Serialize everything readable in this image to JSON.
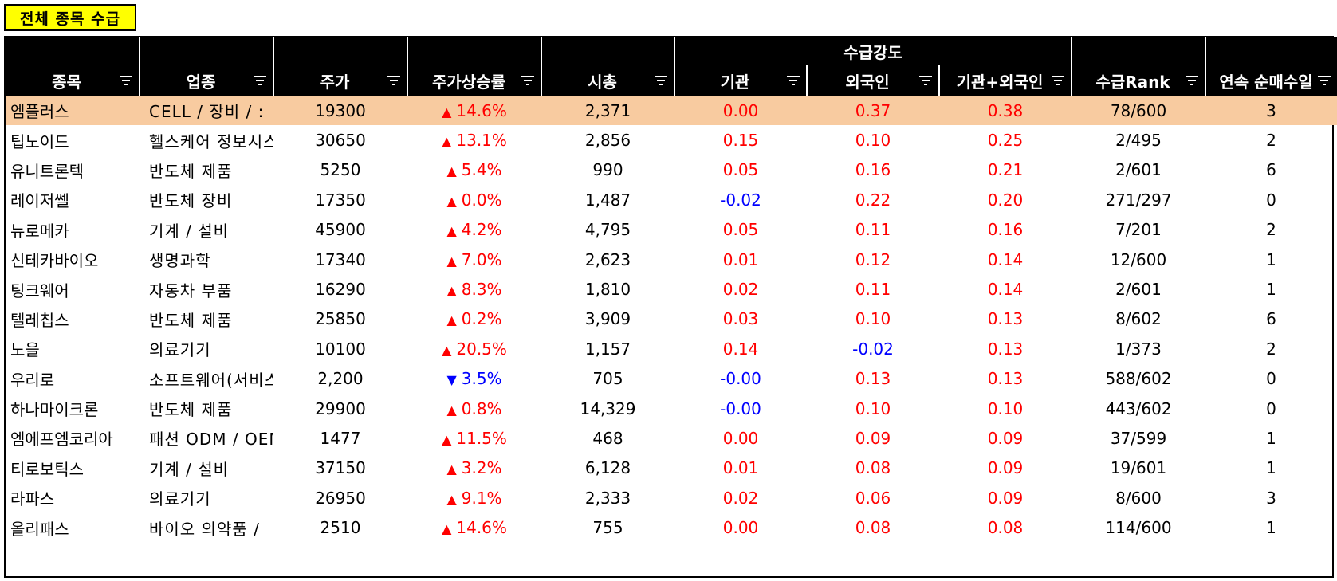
{
  "title": "전체 종목 수급",
  "group_header": "수급강도",
  "columns": [
    "종목",
    "업종",
    "주가",
    "주가상승률",
    "시총",
    "기관",
    "외국인",
    "기관+외국인",
    "수급Rank",
    "연속 순매수일"
  ],
  "icons": {
    "filter": "filter-icon",
    "up": "triangle-up-icon",
    "down": "triangle-down-icon"
  },
  "colors": {
    "highlight_row": "#f8cba0",
    "title_bg": "#ffff00",
    "positive": "#ff0000",
    "negative": "#0000ff"
  },
  "rows": [
    {
      "name": "엠플러스",
      "sector": "CELL / 장비 / :",
      "price": "19300",
      "dir": "up",
      "change": "14.6%",
      "mcap": "2,371",
      "inst": "0.00",
      "inst_dir": "up",
      "foreign": "0.37",
      "foreign_dir": "up",
      "combined": "0.38",
      "combined_dir": "up",
      "rank": "78/600",
      "days": "3",
      "highlight": true
    },
    {
      "name": "팁노이드",
      "sector": "헬스케어 정보시스",
      "price": "30650",
      "dir": "up",
      "change": "13.1%",
      "mcap": "2,856",
      "inst": "0.15",
      "inst_dir": "up",
      "foreign": "0.10",
      "foreign_dir": "up",
      "combined": "0.25",
      "combined_dir": "up",
      "rank": "2/495",
      "days": "2"
    },
    {
      "name": "유니트론텍",
      "sector": "반도체 제품",
      "price": "5250",
      "dir": "up",
      "change": "5.4%",
      "mcap": "990",
      "inst": "0.05",
      "inst_dir": "up",
      "foreign": "0.16",
      "foreign_dir": "up",
      "combined": "0.21",
      "combined_dir": "up",
      "rank": "2/601",
      "days": "6"
    },
    {
      "name": "레이저쎌",
      "sector": "반도체 장비",
      "price": "17350",
      "dir": "up",
      "change": "0.0%",
      "mcap": "1,487",
      "inst": "-0.02",
      "inst_dir": "down",
      "foreign": "0.22",
      "foreign_dir": "up",
      "combined": "0.20",
      "combined_dir": "up",
      "rank": "271/297",
      "days": "0"
    },
    {
      "name": "뉴로메카",
      "sector": "기계 / 설비",
      "price": "45900",
      "dir": "up",
      "change": "4.2%",
      "mcap": "4,795",
      "inst": "0.05",
      "inst_dir": "up",
      "foreign": "0.11",
      "foreign_dir": "up",
      "combined": "0.16",
      "combined_dir": "up",
      "rank": "7/201",
      "days": "2"
    },
    {
      "name": "신테카바이오",
      "sector": "생명과학",
      "price": "17340",
      "dir": "up",
      "change": "7.0%",
      "mcap": "2,623",
      "inst": "0.01",
      "inst_dir": "up",
      "foreign": "0.12",
      "foreign_dir": "up",
      "combined": "0.14",
      "combined_dir": "up",
      "rank": "12/600",
      "days": "1"
    },
    {
      "name": "팅크웨어",
      "sector": "자동차 부품",
      "price": "16290",
      "dir": "up",
      "change": "8.3%",
      "mcap": "1,810",
      "inst": "0.02",
      "inst_dir": "up",
      "foreign": "0.11",
      "foreign_dir": "up",
      "combined": "0.14",
      "combined_dir": "up",
      "rank": "2/601",
      "days": "1"
    },
    {
      "name": "텔레칩스",
      "sector": "반도체 제품",
      "price": "25850",
      "dir": "up",
      "change": "0.2%",
      "mcap": "3,909",
      "inst": "0.03",
      "inst_dir": "up",
      "foreign": "0.10",
      "foreign_dir": "up",
      "combined": "0.13",
      "combined_dir": "up",
      "rank": "8/602",
      "days": "6"
    },
    {
      "name": "노을",
      "sector": "의료기기",
      "price": "10100",
      "dir": "up",
      "change": "20.5%",
      "mcap": "1,157",
      "inst": "0.14",
      "inst_dir": "up",
      "foreign": "-0.02",
      "foreign_dir": "down",
      "combined": "0.13",
      "combined_dir": "up",
      "rank": "1/373",
      "days": "2"
    },
    {
      "name": "우리로",
      "sector": "소프트웨어(서비스",
      "price": "2,200",
      "dir": "down",
      "change": "3.5%",
      "mcap": "705",
      "inst": "-0.00",
      "inst_dir": "down",
      "foreign": "0.13",
      "foreign_dir": "up",
      "combined": "0.13",
      "combined_dir": "up",
      "rank": "588/602",
      "days": "0"
    },
    {
      "name": "하나마이크론",
      "sector": "반도체 제품",
      "price": "29900",
      "dir": "up",
      "change": "0.8%",
      "mcap": "14,329",
      "inst": "-0.00",
      "inst_dir": "down",
      "foreign": "0.10",
      "foreign_dir": "up",
      "combined": "0.10",
      "combined_dir": "up",
      "rank": "443/602",
      "days": "0"
    },
    {
      "name": "엠에프엠코리아",
      "sector": "패션 ODM / OEM",
      "price": "1477",
      "dir": "up",
      "change": "11.5%",
      "mcap": "468",
      "inst": "0.00",
      "inst_dir": "up",
      "foreign": "0.09",
      "foreign_dir": "up",
      "combined": "0.09",
      "combined_dir": "up",
      "rank": "37/599",
      "days": "1"
    },
    {
      "name": "티로보틱스",
      "sector": "기계 / 설비",
      "price": "37150",
      "dir": "up",
      "change": "3.2%",
      "mcap": "6,128",
      "inst": "0.01",
      "inst_dir": "up",
      "foreign": "0.08",
      "foreign_dir": "up",
      "combined": "0.09",
      "combined_dir": "up",
      "rank": "19/601",
      "days": "1"
    },
    {
      "name": "라파스",
      "sector": "의료기기",
      "price": "26950",
      "dir": "up",
      "change": "9.1%",
      "mcap": "2,333",
      "inst": "0.02",
      "inst_dir": "up",
      "foreign": "0.06",
      "foreign_dir": "up",
      "combined": "0.09",
      "combined_dir": "up",
      "rank": "8/600",
      "days": "3"
    },
    {
      "name": "올리패스",
      "sector": "바이오 의약품 /",
      "price": "2510",
      "dir": "up",
      "change": "14.6%",
      "mcap": "755",
      "inst": "0.00",
      "inst_dir": "up",
      "foreign": "0.08",
      "foreign_dir": "up",
      "combined": "0.08",
      "combined_dir": "up",
      "rank": "114/600",
      "days": "1"
    }
  ]
}
